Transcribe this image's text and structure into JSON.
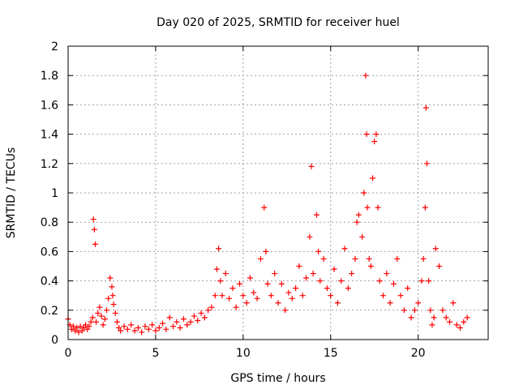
{
  "chart_data": {
    "type": "scatter",
    "title": "Day 020 of 2025, SRMTID for receiver huel",
    "xlabel": "GPS time / hours",
    "ylabel": "SRMTID / TECUs",
    "xlim": [
      0,
      24
    ],
    "ylim": [
      0,
      2
    ],
    "xticks": [
      0,
      5,
      10,
      15,
      20
    ],
    "yticks": [
      0,
      0.2,
      0.4,
      0.6,
      0.8,
      1,
      1.2,
      1.4,
      1.6,
      1.8,
      2
    ],
    "xtick_labels": [
      "0",
      "5",
      "10",
      "15",
      "20"
    ],
    "ytick_labels": [
      "0",
      "0.2",
      "0.4",
      "0.6",
      "0.8",
      "1",
      "1.2",
      "1.4",
      "1.6",
      "1.8",
      "2"
    ],
    "grid": true,
    "marker": "+",
    "color": "#ff0000",
    "series": [
      {
        "name": "huel",
        "x": [
          0.0,
          0.1,
          0.2,
          0.3,
          0.4,
          0.5,
          0.6,
          0.7,
          0.8,
          0.9,
          1.0,
          1.1,
          1.2,
          1.3,
          1.4,
          1.45,
          1.5,
          1.55,
          1.6,
          1.7,
          1.8,
          1.9,
          2.0,
          2.1,
          2.2,
          2.3,
          2.4,
          2.5,
          2.55,
          2.6,
          2.7,
          2.8,
          2.9,
          3.0,
          3.2,
          3.4,
          3.6,
          3.8,
          4.0,
          4.2,
          4.4,
          4.6,
          4.8,
          5.0,
          5.2,
          5.4,
          5.6,
          5.8,
          6.0,
          6.2,
          6.4,
          6.6,
          6.8,
          7.0,
          7.2,
          7.4,
          7.6,
          7.8,
          8.0,
          8.2,
          8.4,
          8.5,
          8.6,
          8.7,
          8.8,
          9.0,
          9.2,
          9.4,
          9.6,
          9.8,
          10.0,
          10.2,
          10.4,
          10.6,
          10.8,
          11.0,
          11.2,
          11.3,
          11.4,
          11.6,
          11.8,
          12.0,
          12.2,
          12.4,
          12.6,
          12.8,
          13.0,
          13.2,
          13.4,
          13.6,
          13.8,
          13.9,
          14.0,
          14.2,
          14.3,
          14.4,
          14.6,
          14.8,
          15.0,
          15.2,
          15.4,
          15.6,
          15.8,
          16.0,
          16.2,
          16.4,
          16.5,
          16.6,
          16.8,
          16.9,
          17.0,
          17.05,
          17.1,
          17.2,
          17.3,
          17.4,
          17.5,
          17.6,
          17.7,
          17.8,
          18.0,
          18.2,
          18.4,
          18.6,
          18.8,
          19.0,
          19.2,
          19.4,
          19.6,
          19.8,
          20.0,
          20.2,
          20.3,
          20.4,
          20.45,
          20.5,
          20.6,
          20.7,
          20.8,
          20.9,
          21.0,
          21.2,
          21.4,
          21.6,
          21.8,
          22.0,
          22.2,
          22.4,
          22.6,
          22.8
        ],
        "y": [
          0.14,
          0.1,
          0.07,
          0.09,
          0.06,
          0.08,
          0.05,
          0.09,
          0.06,
          0.08,
          0.1,
          0.07,
          0.09,
          0.12,
          0.15,
          0.82,
          0.75,
          0.65,
          0.12,
          0.18,
          0.22,
          0.16,
          0.1,
          0.14,
          0.2,
          0.28,
          0.42,
          0.36,
          0.3,
          0.24,
          0.18,
          0.12,
          0.08,
          0.06,
          0.09,
          0.07,
          0.1,
          0.06,
          0.08,
          0.05,
          0.09,
          0.07,
          0.1,
          0.06,
          0.08,
          0.11,
          0.07,
          0.15,
          0.09,
          0.12,
          0.08,
          0.14,
          0.1,
          0.12,
          0.16,
          0.13,
          0.18,
          0.15,
          0.2,
          0.22,
          0.3,
          0.48,
          0.62,
          0.4,
          0.3,
          0.45,
          0.28,
          0.35,
          0.22,
          0.38,
          0.3,
          0.25,
          0.42,
          0.32,
          0.28,
          0.55,
          0.9,
          0.6,
          0.38,
          0.3,
          0.45,
          0.25,
          0.38,
          0.2,
          0.32,
          0.28,
          0.35,
          0.5,
          0.3,
          0.42,
          0.7,
          1.18,
          0.45,
          0.85,
          0.6,
          0.4,
          0.55,
          0.35,
          0.3,
          0.48,
          0.25,
          0.4,
          0.62,
          0.35,
          0.45,
          0.55,
          0.8,
          0.85,
          0.7,
          1.0,
          1.8,
          1.4,
          0.9,
          0.55,
          0.5,
          1.1,
          1.35,
          1.4,
          0.9,
          0.4,
          0.3,
          0.45,
          0.25,
          0.38,
          0.55,
          0.3,
          0.2,
          0.35,
          0.15,
          0.2,
          0.25,
          0.4,
          0.55,
          0.9,
          1.58,
          1.2,
          0.4,
          0.2,
          0.1,
          0.15,
          0.62,
          0.5,
          0.2,
          0.15,
          0.12,
          0.25,
          0.1,
          0.08,
          0.12,
          0.15
        ]
      }
    ]
  }
}
